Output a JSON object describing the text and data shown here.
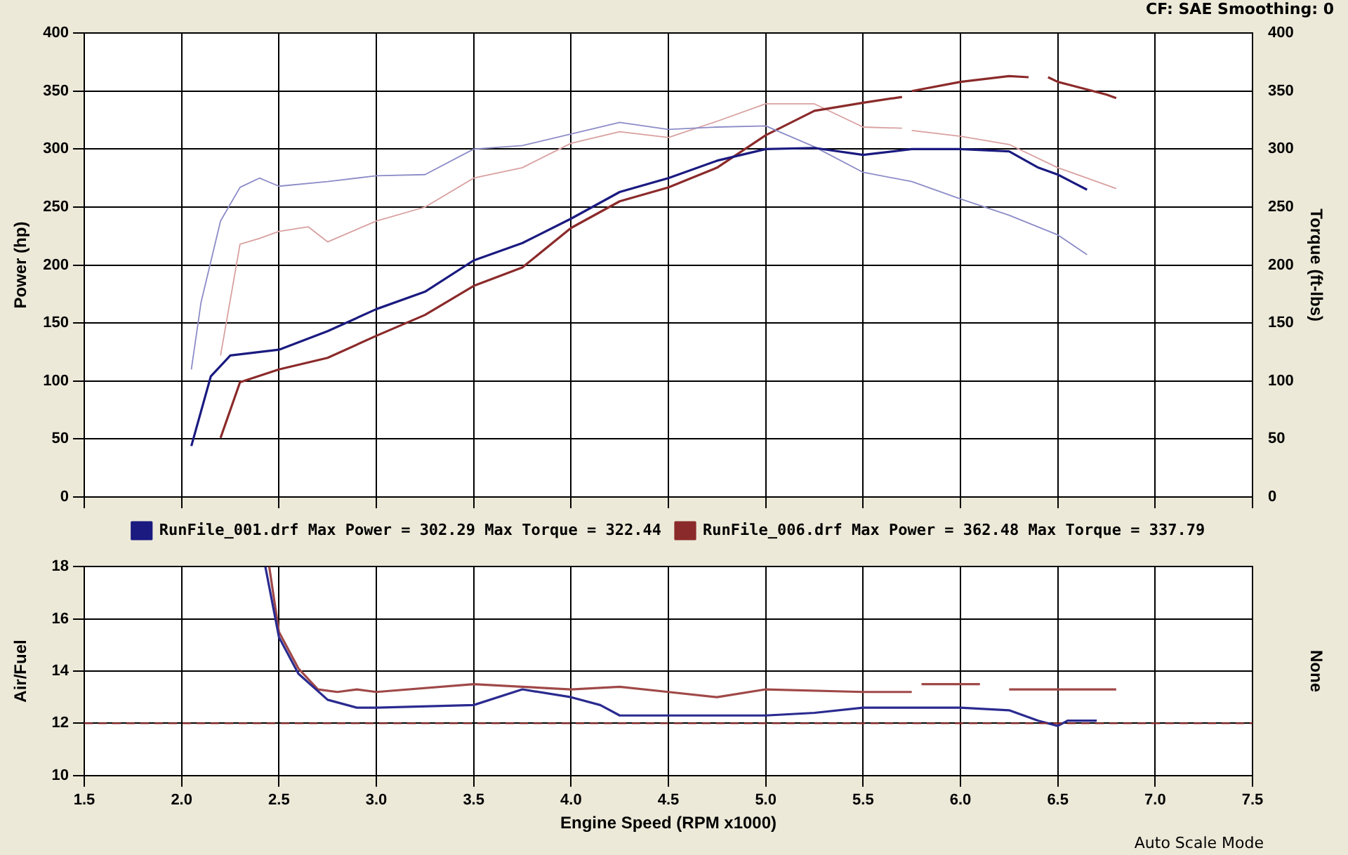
{
  "chart_data": [
    {
      "type": "line",
      "ylabel": "Power (hp)",
      "y2label": "Torque (ft-lbs)",
      "annotations": [
        "CF: SAE  Smoothing: 0"
      ],
      "xlim": [
        1.5,
        7.5
      ],
      "xticks": [
        1.5,
        2,
        2.5,
        3,
        3.5,
        4,
        4.5,
        5,
        5.5,
        6,
        6.5,
        7,
        7.5
      ],
      "ylim": [
        0,
        400
      ],
      "yticks": [
        0,
        50,
        100,
        150,
        200,
        250,
        300,
        350,
        400
      ],
      "y2lim": [
        0,
        400
      ],
      "y2ticks": [
        0,
        50,
        100,
        150,
        200,
        250,
        300,
        350,
        400
      ],
      "tick_labels": "y",
      "grid": true,
      "legend": "bottom",
      "marker": "none",
      "line_style": "solid",
      "series": [
        {
          "name": "RunFile_001.drf Max Power = 302.29 Max Torque = 322.44",
          "color": "#1a1a80",
          "x": [
            2.05,
            2.15,
            2.25,
            2.5,
            2.75,
            3.0,
            3.25,
            3.5,
            3.75,
            4.0,
            4.25,
            4.5,
            4.75,
            5.0,
            5.25,
            5.5,
            5.75,
            6.0,
            6.25,
            6.4,
            6.5,
            6.65
          ],
          "values": [
            44,
            104,
            122,
            127,
            143,
            162,
            177,
            204,
            219,
            240,
            263,
            275,
            290,
            300,
            301,
            295,
            300,
            300,
            298,
            284,
            278,
            265
          ]
        },
        {
          "color": "#8c8cc8",
          "axis": "y2",
          "x": [
            2.05,
            2.1,
            2.2,
            2.3,
            2.4,
            2.5,
            2.75,
            3.0,
            3.25,
            3.5,
            3.75,
            4.0,
            4.25,
            4.5,
            4.75,
            5.0,
            5.25,
            5.5,
            5.75,
            6.0,
            6.25,
            6.5,
            6.65
          ],
          "values": [
            110,
            168,
            238,
            267,
            275,
            268,
            272,
            277,
            278,
            300,
            303,
            313,
            323,
            317,
            319,
            320,
            302,
            280,
            272,
            257,
            243,
            226,
            209
          ]
        },
        {
          "name": "RunFile_006.drf Max Power = 362.48 Max Torque = 337.79",
          "color": "#8b2a2a",
          "x": [
            2.2,
            2.3,
            2.5,
            2.75,
            3.0,
            3.25,
            3.5,
            3.75,
            4.0,
            4.25,
            4.5,
            4.75,
            5.0,
            5.25,
            5.5,
            5.7,
            5.72,
            5.75,
            6.0,
            6.25,
            6.35,
            6.4,
            6.45,
            6.5,
            6.75,
            6.8
          ],
          "values": [
            51,
            99,
            110,
            120,
            139,
            157,
            182,
            198,
            232,
            255,
            267,
            284,
            312,
            333,
            340,
            345,
            null,
            350,
            358,
            363,
            362,
            null,
            362,
            358,
            347,
            344
          ]
        },
        {
          "color": "#d9a0a0",
          "axis": "y2",
          "x": [
            2.2,
            2.3,
            2.4,
            2.5,
            2.65,
            2.75,
            3.0,
            3.25,
            3.5,
            3.75,
            4.0,
            4.25,
            4.5,
            4.75,
            5.0,
            5.25,
            5.5,
            5.7,
            5.72,
            5.75,
            6.0,
            6.25,
            6.5,
            6.75,
            6.8
          ],
          "values": [
            122,
            218,
            223,
            229,
            233,
            220,
            238,
            250,
            275,
            284,
            305,
            315,
            310,
            324,
            339,
            339,
            319,
            318,
            null,
            316,
            311,
            304,
            284,
            269,
            266
          ]
        }
      ]
    },
    {
      "type": "line",
      "xlabel": "Engine Speed (RPM x1000)",
      "ylabel": "Air/Fuel",
      "y2label": "None",
      "annotations": [
        "Auto Scale Mode"
      ],
      "xlim": [
        1.5,
        7.5
      ],
      "xticks": [
        1.5,
        {
          "value": 2,
          "label": "2.0"
        },
        2.5,
        {
          "value": 3,
          "label": "3.0"
        },
        3.5,
        {
          "value": 4,
          "label": "4.0"
        },
        4.5,
        {
          "value": 5,
          "label": "5.0"
        },
        5.5,
        {
          "value": 6,
          "label": "6.0"
        },
        6.5,
        {
          "value": 7,
          "label": "7.0"
        },
        7.5
      ],
      "ylim": [
        10,
        18
      ],
      "yticks": [
        10,
        12,
        14,
        16,
        18
      ],
      "grid": true,
      "marker": "none",
      "line_style": "solid",
      "ref_lines": [
        {
          "axis": "y",
          "value": 12,
          "color": "#8b2a2a",
          "line_style": "dashed"
        }
      ],
      "series": [
        {
          "color": "#2a2a90",
          "x": [
            2.43,
            2.5,
            2.6,
            2.75,
            2.9,
            3.0,
            3.5,
            3.75,
            4.0,
            4.15,
            4.25,
            4.5,
            5.0,
            5.25,
            5.5,
            5.75,
            6.0,
            6.25,
            6.4,
            6.5,
            6.55,
            6.7
          ],
          "values": [
            18,
            15.3,
            13.9,
            12.9,
            12.6,
            12.6,
            12.7,
            13.3,
            13.0,
            12.7,
            12.3,
            12.3,
            12.3,
            12.4,
            12.6,
            12.6,
            12.6,
            12.5,
            12.1,
            11.9,
            12.1,
            12.1
          ]
        },
        {
          "color": "#a04848",
          "x": [
            2.45,
            2.5,
            2.6,
            2.7,
            2.8,
            2.9,
            3.0,
            3.5,
            3.75,
            4.0,
            4.25,
            4.5,
            4.75,
            5.0,
            5.5,
            5.75,
            5.77,
            5.8,
            6.1,
            6.2,
            6.25,
            6.5,
            6.8
          ],
          "values": [
            18,
            15.5,
            14.1,
            13.3,
            13.2,
            13.3,
            13.2,
            13.5,
            13.4,
            13.3,
            13.4,
            13.2,
            13.0,
            13.3,
            13.2,
            13.2,
            null,
            13.5,
            13.5,
            null,
            13.3,
            13.3,
            13.3
          ]
        }
      ]
    }
  ]
}
